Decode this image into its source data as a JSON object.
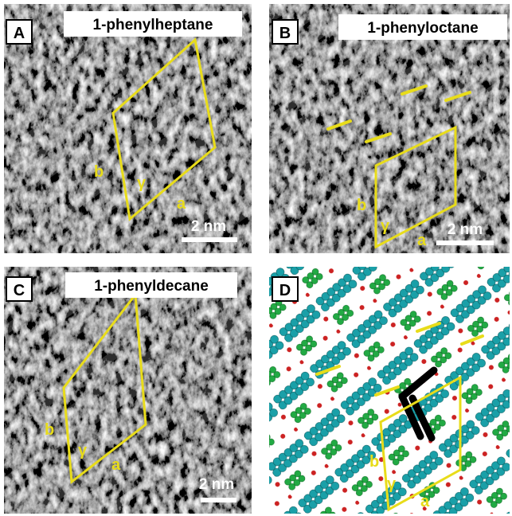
{
  "panels": [
    {
      "label": "A",
      "title": "1-phenylheptane",
      "b": "b",
      "gamma": "γ",
      "a": "a",
      "scale": "2 nm"
    },
    {
      "label": "B",
      "title": "1-phenyloctane",
      "b": "b",
      "gamma": "γ",
      "a": "a",
      "scale": "2 nm"
    },
    {
      "label": "C",
      "title": "1-phenyldecane",
      "b": "b",
      "gamma": "γ",
      "a": "a",
      "scale": "2 nm"
    },
    {
      "label": "D",
      "b": "b",
      "gamma": "γ",
      "a": "a"
    }
  ]
}
